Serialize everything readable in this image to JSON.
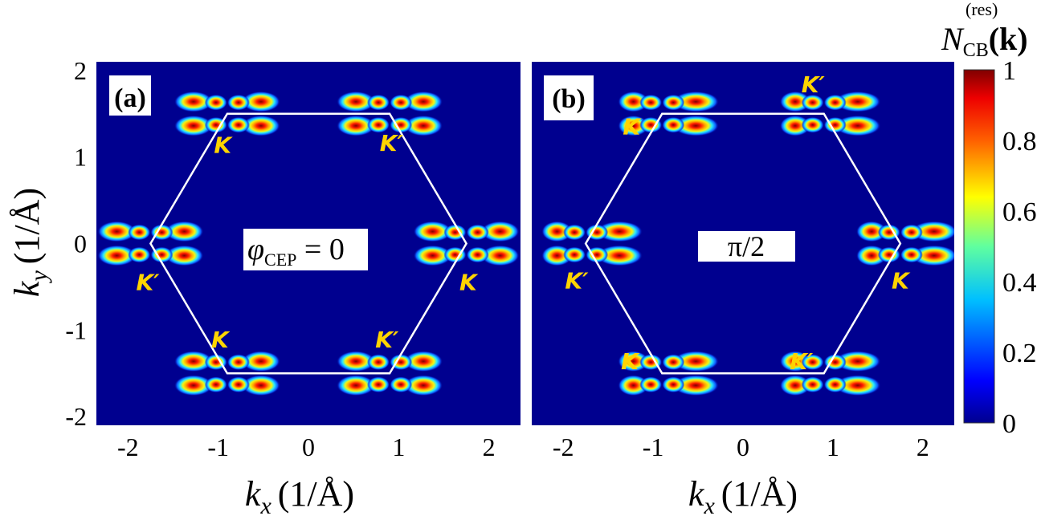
{
  "chart_data": {
    "type": "heatmap",
    "x_ticks": [
      -2,
      -1,
      0,
      1,
      2
    ],
    "y_ticks": [
      -2,
      -1,
      0,
      1,
      2
    ],
    "x_tick_labels": [
      "-2",
      "-1",
      "0",
      "1",
      "2"
    ],
    "y_tick_labels": [
      "-2",
      "-1",
      "0",
      "1",
      "2"
    ],
    "xlim": [
      -2.35,
      2.35
    ],
    "ylim": [
      -2.1,
      2.1
    ],
    "xlabel_var": "k",
    "xlabel_sub": "x",
    "xlabel_unit": "(1/Å)",
    "ylabel_var": "k",
    "ylabel_sub": "y",
    "ylabel_unit": "(1/Å)",
    "colorbar": {
      "title_var": "N",
      "title_sub": "CB",
      "title_sup": "(res)",
      "title_arg": "(k)",
      "range": [
        0,
        1
      ],
      "ticks": [
        0,
        0.2,
        0.4,
        0.6,
        0.8,
        1
      ],
      "tick_labels": [
        "0",
        "0.2",
        "0.4",
        "0.6",
        "0.8",
        "1"
      ]
    },
    "brillouin_zone_vertices": [
      {
        "x": 0.9,
        "y": 1.5
      },
      {
        "x": 1.75,
        "y": 0.0
      },
      {
        "x": 0.9,
        "y": -1.5
      },
      {
        "x": -0.9,
        "y": -1.5
      },
      {
        "x": -1.75,
        "y": 0.0
      },
      {
        "x": -0.9,
        "y": 1.5
      }
    ],
    "panels": [
      {
        "label": "(a)",
        "annotation_var": "φ",
        "annotation_sub": "CEP",
        "annotation_rest": " = 0",
        "valleys": [
          {
            "label": "K",
            "x": -0.9,
            "y": 1.5,
            "lx": -0.95,
            "ly": 1.05
          },
          {
            "label": "K′",
            "x": 0.9,
            "y": 1.5,
            "lx": 0.92,
            "ly": 1.07
          },
          {
            "label": "K",
            "x": 1.75,
            "y": 0.0,
            "lx": 1.77,
            "ly": -0.54
          },
          {
            "label": "K′",
            "x": -1.75,
            "y": 0.0,
            "lx": -1.78,
            "ly": -0.54
          },
          {
            "label": "K",
            "x": -0.9,
            "y": -1.5,
            "lx": -0.98,
            "ly": -1.2
          },
          {
            "label": "K′",
            "x": 0.9,
            "y": -1.5,
            "lx": 0.87,
            "ly": -1.2
          }
        ]
      },
      {
        "label": "(b)",
        "annotation_text": "π/2",
        "valleys": [
          {
            "label": "K",
            "x": -0.9,
            "y": 1.5,
            "lx": -1.24,
            "ly": 1.26
          },
          {
            "label": "K′",
            "x": 0.9,
            "y": 1.5,
            "lx": 0.78,
            "ly": 1.75
          },
          {
            "label": "K",
            "x": 1.75,
            "y": 0.0,
            "lx": 1.75,
            "ly": -0.52
          },
          {
            "label": "K′",
            "x": -1.75,
            "y": 0.0,
            "lx": -1.85,
            "ly": -0.52
          },
          {
            "label": "K",
            "x": -0.9,
            "y": -1.5,
            "lx": -1.26,
            "ly": -1.45
          },
          {
            "label": "K′",
            "x": 0.9,
            "y": -1.5,
            "lx": 0.65,
            "ly": -1.45
          }
        ]
      }
    ]
  }
}
